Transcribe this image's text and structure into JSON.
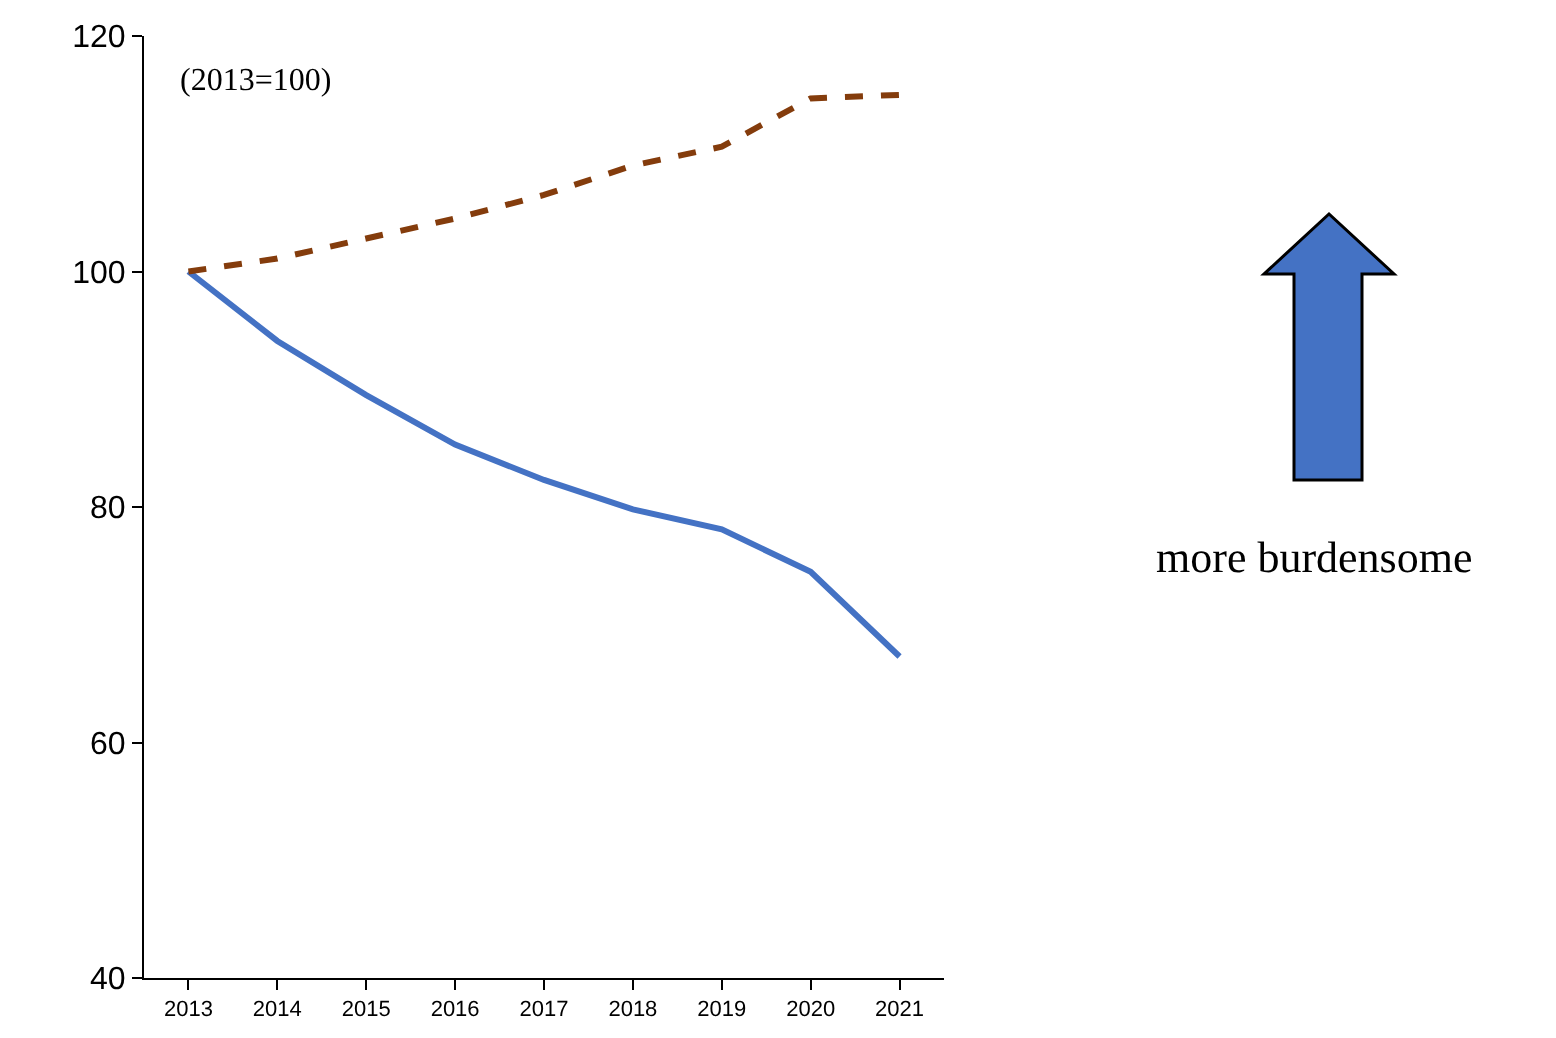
{
  "chart_data": {
    "type": "line",
    "categories": [
      "2013",
      "2014",
      "2015",
      "2016",
      "2017",
      "2018",
      "2019",
      "2020",
      "2021"
    ],
    "series": [
      {
        "color": "#4472c4",
        "line_style": "solid",
        "values": [
          100,
          94.1,
          89.5,
          85.3,
          82.3,
          79.8,
          78.1,
          74.5,
          67.3
        ]
      },
      {
        "color": "#843c0c",
        "line_style": "dashed",
        "values": [
          100,
          101.1,
          102.8,
          104.5,
          106.5,
          109,
          110.6,
          114.7,
          115
        ]
      }
    ],
    "ylim": [
      40,
      120
    ],
    "yticks": [
      40,
      60,
      80,
      100,
      120
    ],
    "marker": "none",
    "annotations": [
      "(2013=100)",
      "more burdensome"
    ]
  }
}
